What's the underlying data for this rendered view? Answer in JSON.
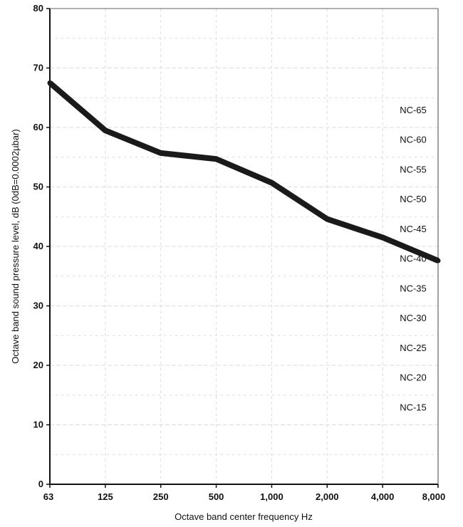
{
  "chart_data": {
    "type": "line",
    "xlabel": "Octave band center frequency Hz",
    "ylabel": "Octave band sound pressure level, dB (0dB=0.0002µbar)",
    "x_categories": [
      "63",
      "125",
      "250",
      "500",
      "1,000",
      "2,000",
      "4,000",
      "8,000"
    ],
    "ylim": [
      0,
      80
    ],
    "yticks": [
      0,
      10,
      20,
      30,
      40,
      50,
      60,
      70,
      80
    ],
    "grid": true,
    "series": [
      {
        "values": [
          67.5,
          59.5,
          55.7,
          54.7,
          50.7,
          44.6,
          41.5,
          37.6
        ]
      }
    ],
    "curve_labels": [
      {
        "text": "NC-65",
        "y": 63
      },
      {
        "text": "NC-60",
        "y": 58
      },
      {
        "text": "NC-55",
        "y": 53
      },
      {
        "text": "NC-50",
        "y": 48
      },
      {
        "text": "NC-45",
        "y": 43
      },
      {
        "text": "NC-40",
        "y": 38
      },
      {
        "text": "NC-35",
        "y": 33
      },
      {
        "text": "NC-30",
        "y": 28
      },
      {
        "text": "NC-25",
        "y": 23
      },
      {
        "text": "NC-20",
        "y": 18
      },
      {
        "text": "NC-15",
        "y": 13
      }
    ]
  }
}
